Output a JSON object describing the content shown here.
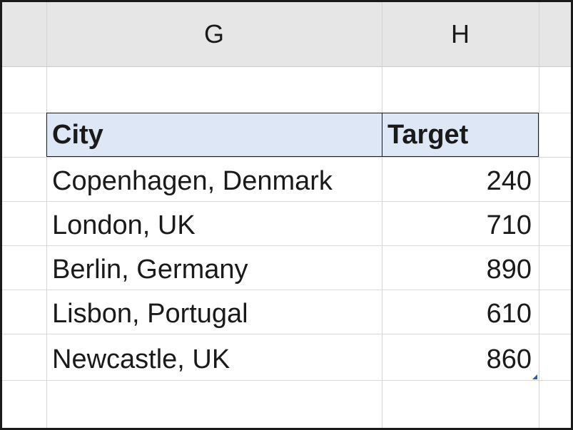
{
  "columns": {
    "g": "G",
    "h": "H"
  },
  "table": {
    "headers": {
      "city": "City",
      "target": "Target"
    },
    "rows": [
      {
        "city": "Copenhagen, Denmark",
        "target": "240"
      },
      {
        "city": "London, UK",
        "target": "710"
      },
      {
        "city": "Berlin, Germany",
        "target": "890"
      },
      {
        "city": "Lisbon, Portugal",
        "target": "610"
      },
      {
        "city": "Newcastle, UK",
        "target": "860"
      }
    ]
  },
  "colors": {
    "header_fill": "#dde7f5",
    "column_header_band": "#e6e6e6",
    "gridline": "#d9d9d9",
    "table_handle": "#2f5aa8"
  }
}
